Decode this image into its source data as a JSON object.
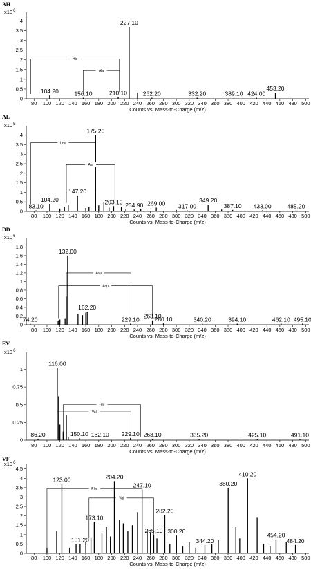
{
  "chart_data": [
    {
      "type": "bar",
      "panel_label": "AH",
      "exponent": "x10 6",
      "xlabel": "Counts vs. Mass-to-Charge (m/z)",
      "xlim": [
        68,
        505
      ],
      "ylim": [
        0,
        4.3
      ],
      "xticks": [
        80,
        100,
        120,
        140,
        160,
        180,
        200,
        220,
        240,
        260,
        280,
        300,
        320,
        340,
        360,
        380,
        400,
        420,
        440,
        460,
        480,
        500
      ],
      "yticks": [
        0,
        0.5,
        1,
        1.5,
        2,
        2.5,
        3,
        3.5,
        4
      ],
      "peaks": [
        {
          "x": 104.2,
          "y": 0.18,
          "label": "104.20"
        },
        {
          "x": 156.1,
          "y": 0.04,
          "label": "156.10"
        },
        {
          "x": 210.1,
          "y": 0.08,
          "label": "210.10"
        },
        {
          "x": 227.1,
          "y": 3.7,
          "label": "227.10"
        },
        {
          "x": 240,
          "y": 0.32,
          "label": ""
        },
        {
          "x": 262.2,
          "y": 0.04,
          "label": "262.20"
        },
        {
          "x": 332.2,
          "y": 0.03,
          "label": "332.20"
        },
        {
          "x": 389.1,
          "y": 0.03,
          "label": "389.10"
        },
        {
          "x": 424.0,
          "y": 0.03,
          "label": "424.00"
        },
        {
          "x": 453.2,
          "y": 0.32,
          "label": "453.20"
        }
      ],
      "annotations": [
        {
          "label": "His",
          "x1": 75,
          "x2": 212,
          "y": 2.05,
          "y1": 0.25,
          "y2": 0.35
        },
        {
          "label": "Ala",
          "x1": 156,
          "x2": 212,
          "y": 1.45,
          "y1": 0.35,
          "y2": 0.35
        }
      ]
    },
    {
      "type": "bar",
      "panel_label": "AL",
      "exponent": "x10 5",
      "xlabel": "Counts vs. Mass-to-Charge (m/z)",
      "xlim": [
        68,
        505
      ],
      "ylim": [
        0,
        4.35
      ],
      "xticks": [
        80,
        100,
        120,
        140,
        160,
        180,
        200,
        220,
        240,
        260,
        280,
        300,
        320,
        340,
        360,
        380,
        400,
        420,
        440,
        460,
        480,
        500
      ],
      "yticks": [
        0,
        0.5,
        1,
        1.5,
        2,
        2.5,
        3,
        3.5,
        4
      ],
      "peaks": [
        {
          "x": 83.1,
          "y": 0.03,
          "label": "83.10"
        },
        {
          "x": 104.2,
          "y": 0.4,
          "label": "104.20"
        },
        {
          "x": 147.2,
          "y": 0.83,
          "label": "147.20"
        },
        {
          "x": 175.2,
          "y": 4.0,
          "label": "175.20"
        },
        {
          "x": 203.1,
          "y": 0.28,
          "label": "203.10"
        },
        {
          "x": 234.9,
          "y": 0.1,
          "label": "234.90"
        },
        {
          "x": 269.0,
          "y": 0.2,
          "label": "269.00"
        },
        {
          "x": 317.0,
          "y": 0.04,
          "label": "317.00"
        },
        {
          "x": 349.2,
          "y": 0.36,
          "label": "349.20"
        },
        {
          "x": 387.1,
          "y": 0.08,
          "label": "387.10"
        },
        {
          "x": 433.0,
          "y": 0.05,
          "label": "433.00"
        },
        {
          "x": 485.2,
          "y": 0.03,
          "label": "485.20"
        },
        {
          "x": 120,
          "y": 0.15,
          "label": ""
        },
        {
          "x": 127,
          "y": 0.25,
          "label": ""
        },
        {
          "x": 133,
          "y": 0.35,
          "label": ""
        },
        {
          "x": 160,
          "y": 0.18,
          "label": ""
        },
        {
          "x": 165,
          "y": 0.22,
          "label": ""
        },
        {
          "x": 180,
          "y": 0.32,
          "label": ""
        },
        {
          "x": 188,
          "y": 0.5,
          "label": ""
        },
        {
          "x": 196,
          "y": 0.2,
          "label": ""
        },
        {
          "x": 215,
          "y": 0.25,
          "label": ""
        },
        {
          "x": 222,
          "y": 0.15,
          "label": ""
        },
        {
          "x": 245,
          "y": 0.12,
          "label": ""
        },
        {
          "x": 300,
          "y": 0.08,
          "label": ""
        },
        {
          "x": 370,
          "y": 0.1,
          "label": ""
        }
      ],
      "annotations": [
        {
          "label": "Leu",
          "x1": 75,
          "x2": 175,
          "y": 3.6,
          "y1": 0.4,
          "y2": 1.0
        },
        {
          "label": "Ala",
          "x1": 130,
          "x2": 205,
          "y": 2.45,
          "y1": 0.45,
          "y2": 0.45
        }
      ]
    },
    {
      "type": "bar",
      "panel_label": "DD",
      "exponent": "x10 6",
      "xlabel": "Counts vs. Mass-to-Charge (m/z)",
      "xlim": [
        68,
        505
      ],
      "ylim": [
        0,
        1.95
      ],
      "xticks": [
        80,
        100,
        120,
        140,
        160,
        180,
        200,
        220,
        240,
        260,
        280,
        300,
        320,
        340,
        360,
        380,
        400,
        420,
        440,
        460,
        480,
        500
      ],
      "yticks": [
        0,
        0.2,
        0.4,
        0.6,
        0.8,
        1,
        1.2,
        1.4,
        1.6,
        1.8
      ],
      "ytick_labels": [
        "0",
        "0.2",
        "0.4",
        "0.6",
        "0.8",
        "1",
        "1.2",
        "1.4",
        "1.6",
        "1.8"
      ],
      "peaks": [
        {
          "x": 74.2,
          "y": 0.02,
          "label": "74.20"
        },
        {
          "x": 132.0,
          "y": 1.6,
          "label": "132.00"
        },
        {
          "x": 162.2,
          "y": 0.3,
          "label": "162.20"
        },
        {
          "x": 229.1,
          "y": 0.02,
          "label": "229.10"
        },
        {
          "x": 263.1,
          "y": 0.1,
          "label": "263.10"
        },
        {
          "x": 280.1,
          "y": 0.03,
          "label": "280.10"
        },
        {
          "x": 340.2,
          "y": 0.02,
          "label": "340.20"
        },
        {
          "x": 394.1,
          "y": 0.02,
          "label": "394.10"
        },
        {
          "x": 462.1,
          "y": 0.02,
          "label": "462.10"
        },
        {
          "x": 495.1,
          "y": 0.02,
          "label": "495.10"
        },
        {
          "x": 116,
          "y": 0.08,
          "label": ""
        },
        {
          "x": 118,
          "y": 0.1,
          "label": ""
        },
        {
          "x": 120,
          "y": 0.12,
          "label": ""
        },
        {
          "x": 128,
          "y": 0.15,
          "label": ""
        },
        {
          "x": 130,
          "y": 0.65,
          "label": ""
        },
        {
          "x": 148,
          "y": 0.25,
          "label": ""
        },
        {
          "x": 155,
          "y": 0.22,
          "label": ""
        },
        {
          "x": 160,
          "y": 0.28,
          "label": ""
        }
      ],
      "annotations": [
        {
          "label": "Asp",
          "x1": 130,
          "x2": 230,
          "y": 1.2,
          "y1": 0.3,
          "y2": 0.15
        },
        {
          "label": "Asp",
          "x1": 118,
          "x2": 263,
          "y": 0.9,
          "y1": 0.15,
          "y2": 0.15
        }
      ]
    },
    {
      "type": "bar",
      "panel_label": "EV",
      "exponent": "x10 6",
      "xlabel": "Counts vs. Mass-to-Charge (m/z)",
      "xlim": [
        68,
        505
      ],
      "ylim": [
        0,
        1.2
      ],
      "xticks": [
        80,
        100,
        120,
        140,
        160,
        180,
        200,
        220,
        240,
        260,
        280,
        300,
        320,
        340,
        360,
        380,
        400,
        420,
        440,
        460,
        480,
        500
      ],
      "yticks": [
        0,
        0.25,
        0.5,
        0.75,
        1
      ],
      "peaks": [
        {
          "x": 86.2,
          "y": 0.02,
          "label": "86.20"
        },
        {
          "x": 116.0,
          "y": 1.02,
          "label": "116.00"
        },
        {
          "x": 150.1,
          "y": 0.03,
          "label": "150.10"
        },
        {
          "x": 182.1,
          "y": 0.02,
          "label": "182.10"
        },
        {
          "x": 229.1,
          "y": 0.03,
          "label": "229.10"
        },
        {
          "x": 263.1,
          "y": 0.02,
          "label": "263.10"
        },
        {
          "x": 335.2,
          "y": 0.01,
          "label": "335.20"
        },
        {
          "x": 425.1,
          "y": 0.01,
          "label": "425.10"
        },
        {
          "x": 491.1,
          "y": 0.01,
          "label": "491.10"
        },
        {
          "x": 118,
          "y": 0.62,
          "label": ""
        },
        {
          "x": 120,
          "y": 0.22,
          "label": ""
        },
        {
          "x": 125,
          "y": 0.12,
          "label": ""
        },
        {
          "x": 130,
          "y": 0.36,
          "label": ""
        },
        {
          "x": 133,
          "y": 0.05,
          "label": ""
        }
      ],
      "annotations": [
        {
          "label": "Glu",
          "x1": 125,
          "x2": 245,
          "y": 0.5,
          "y1": 0.05,
          "y2": 0.05
        },
        {
          "label": "Val",
          "x1": 116,
          "x2": 230,
          "y": 0.4,
          "y1": 0.05,
          "y2": 0.05
        }
      ]
    },
    {
      "type": "bar",
      "panel_label": "VF",
      "exponent": "x10 6",
      "xlabel": "Counts vs. Mass-to-Charge (m/z)",
      "xlim": [
        68,
        505
      ],
      "ylim": [
        0,
        4.6
      ],
      "xticks": [
        80,
        100,
        120,
        140,
        160,
        180,
        200,
        220,
        240,
        260,
        280,
        300,
        320,
        340,
        360,
        380,
        400,
        420,
        440,
        460,
        480,
        500
      ],
      "yticks": [
        0,
        0.5,
        1,
        1.5,
        2,
        2.5,
        3,
        3.5,
        4,
        4.5
      ],
      "peaks": [
        {
          "x": 123.0,
          "y": 3.7,
          "label": "123.00"
        },
        {
          "x": 151.2,
          "y": 0.5,
          "label": "151.20"
        },
        {
          "x": 173.1,
          "y": 1.68,
          "label": "173.10"
        },
        {
          "x": 204.2,
          "y": 3.85,
          "label": "204.20"
        },
        {
          "x": 247.1,
          "y": 3.4,
          "label": "247.10"
        },
        {
          "x": 265.1,
          "y": 1.0,
          "label": "265.10"
        },
        {
          "x": 282.2,
          "y": 2.05,
          "label": "282.20"
        },
        {
          "x": 300.2,
          "y": 0.95,
          "label": "300.20"
        },
        {
          "x": 344.2,
          "y": 0.45,
          "label": "344.20"
        },
        {
          "x": 380.2,
          "y": 3.5,
          "label": "380.20"
        },
        {
          "x": 410.2,
          "y": 4.0,
          "label": "410.20"
        },
        {
          "x": 454.2,
          "y": 0.75,
          "label": "454.20"
        },
        {
          "x": 484.2,
          "y": 0.45,
          "label": "484.20"
        },
        {
          "x": 100,
          "y": 0.3,
          "label": ""
        },
        {
          "x": 115,
          "y": 1.2,
          "label": ""
        },
        {
          "x": 135,
          "y": 0.3,
          "label": ""
        },
        {
          "x": 145,
          "y": 0.5,
          "label": ""
        },
        {
          "x": 160,
          "y": 0.6,
          "label": ""
        },
        {
          "x": 168,
          "y": 0.8,
          "label": ""
        },
        {
          "x": 185,
          "y": 1.1,
          "label": ""
        },
        {
          "x": 192,
          "y": 1.4,
          "label": ""
        },
        {
          "x": 198,
          "y": 0.9,
          "label": ""
        },
        {
          "x": 212,
          "y": 1.8,
          "label": ""
        },
        {
          "x": 218,
          "y": 1.6,
          "label": ""
        },
        {
          "x": 225,
          "y": 1.2,
          "label": ""
        },
        {
          "x": 232,
          "y": 1.5,
          "label": ""
        },
        {
          "x": 240,
          "y": 2.2,
          "label": ""
        },
        {
          "x": 255,
          "y": 1.3,
          "label": ""
        },
        {
          "x": 260,
          "y": 1.1,
          "label": ""
        },
        {
          "x": 270,
          "y": 0.8,
          "label": ""
        },
        {
          "x": 290,
          "y": 0.5,
          "label": ""
        },
        {
          "x": 310,
          "y": 0.4,
          "label": ""
        },
        {
          "x": 320,
          "y": 0.6,
          "label": ""
        },
        {
          "x": 330,
          "y": 0.3,
          "label": ""
        },
        {
          "x": 355,
          "y": 0.5,
          "label": ""
        },
        {
          "x": 365,
          "y": 0.7,
          "label": ""
        },
        {
          "x": 392,
          "y": 1.4,
          "label": ""
        },
        {
          "x": 398,
          "y": 0.8,
          "label": ""
        },
        {
          "x": 425,
          "y": 1.9,
          "label": ""
        },
        {
          "x": 435,
          "y": 0.5,
          "label": ""
        },
        {
          "x": 445,
          "y": 0.4,
          "label": ""
        },
        {
          "x": 470,
          "y": 0.6,
          "label": ""
        }
      ],
      "annotations": [
        {
          "label": "Phe",
          "x1": 100,
          "x2": 247,
          "y": 3.45,
          "y1": 0.3,
          "y2": 2.2
        },
        {
          "label": "Val",
          "x1": 165,
          "x2": 265,
          "y": 2.95,
          "y1": 0.8,
          "y2": 1.0
        }
      ]
    }
  ]
}
